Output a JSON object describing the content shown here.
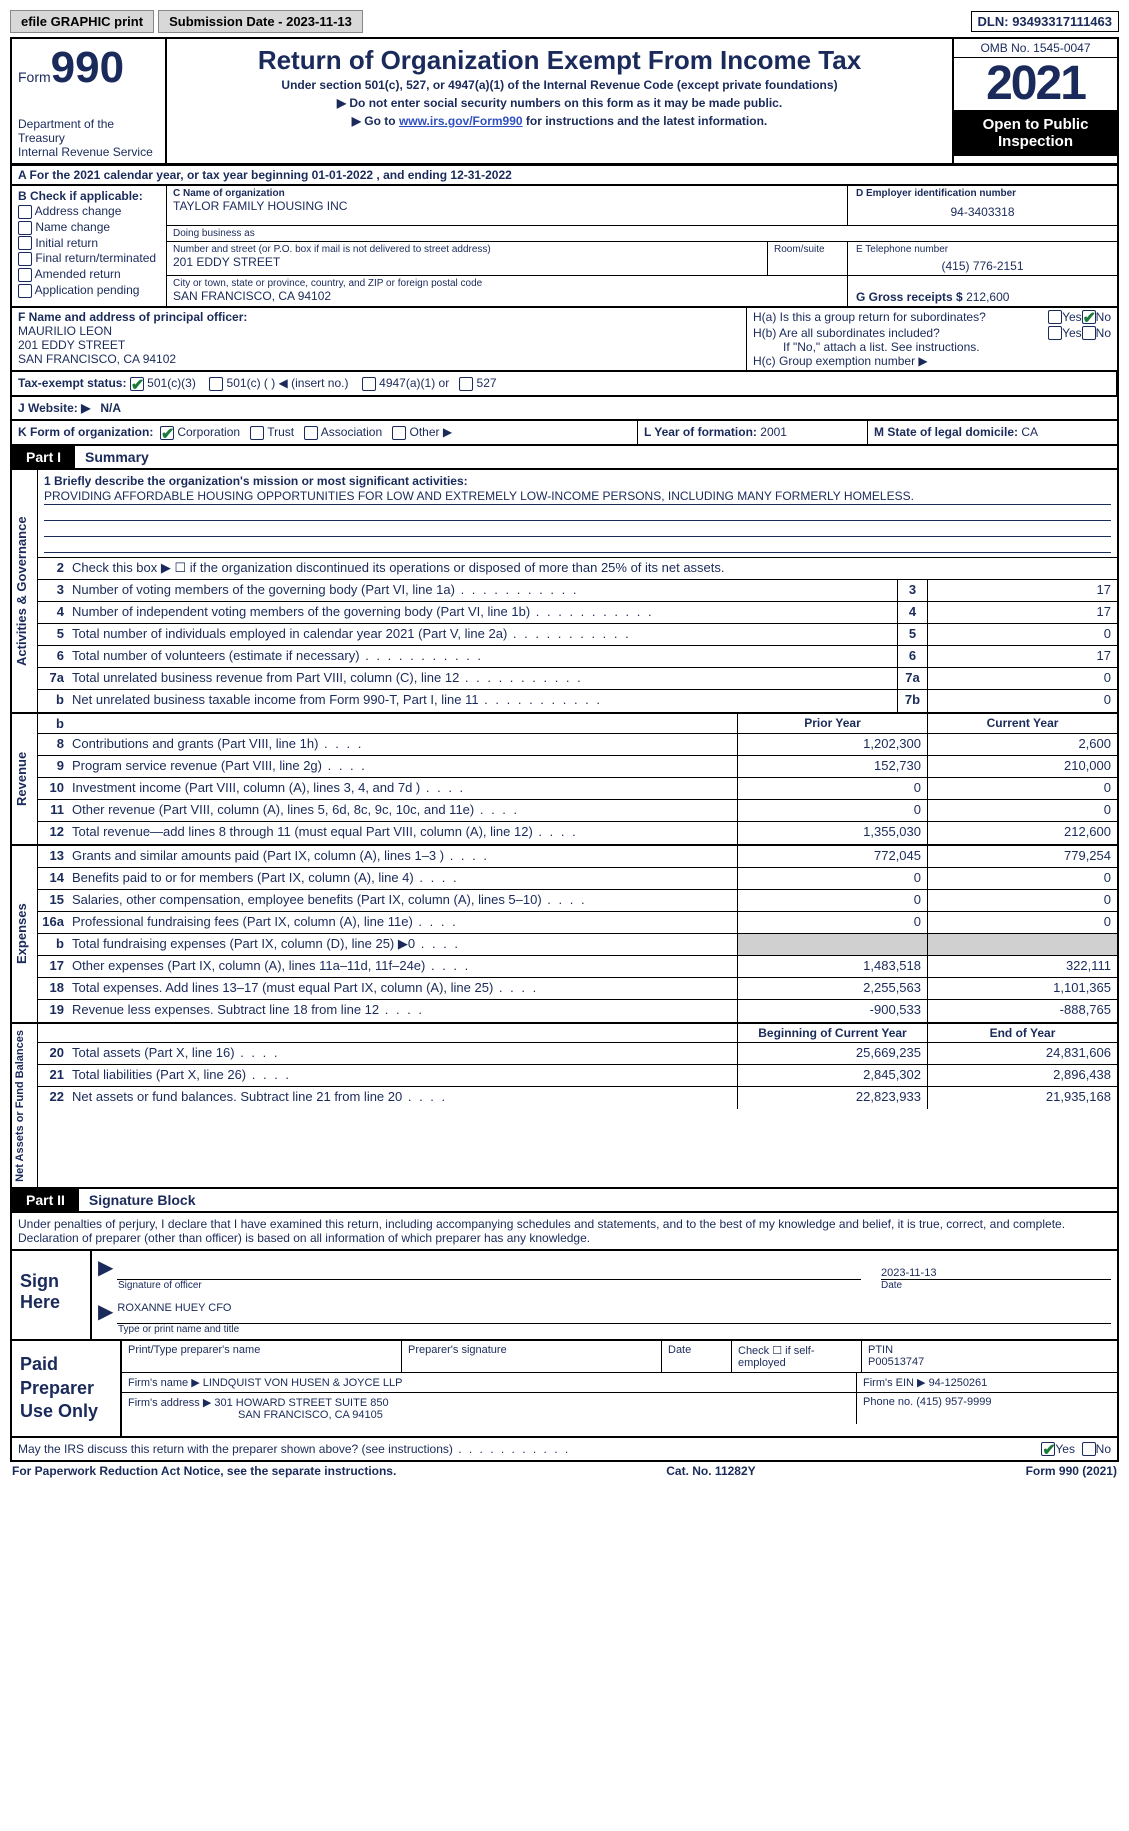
{
  "top": {
    "efile": "efile GRAPHIC print",
    "submission": "Submission Date - 2023-11-13",
    "dln": "DLN: 93493317111463"
  },
  "header": {
    "form_label": "Form",
    "form_number": "990",
    "dept": "Department of the Treasury",
    "irs": "Internal Revenue Service",
    "title": "Return of Organization Exempt From Income Tax",
    "subtitle": "Under section 501(c), 527, or 4947(a)(1) of the Internal Revenue Code (except private foundations)",
    "note1": "▶ Do not enter social security numbers on this form as it may be made public.",
    "note2_pre": "▶ Go to ",
    "note2_link": "www.irs.gov/Form990",
    "note2_post": " for instructions and the latest information.",
    "omb": "OMB No. 1545-0047",
    "year": "2021",
    "open": "Open to Public Inspection"
  },
  "row_a": {
    "text_pre": "A For the 2021 calendar year, or tax year beginning ",
    "begin": "01-01-2022",
    "mid": "   , and ending ",
    "end": "12-31-2022"
  },
  "col_b": {
    "head": "B Check if applicable:",
    "items": [
      "Address change",
      "Name change",
      "Initial return",
      "Final return/terminated",
      "Amended return",
      "Application pending"
    ]
  },
  "col_c": {
    "name_lbl": "C Name of organization",
    "name": "TAYLOR FAMILY HOUSING INC",
    "dba_lbl": "Doing business as",
    "dba": "",
    "street_lbl": "Number and street (or P.O. box if mail is not delivered to street address)",
    "street": "201 EDDY STREET",
    "room_lbl": "Room/suite",
    "city_lbl": "City or town, state or province, country, and ZIP or foreign postal code",
    "city": "SAN FRANCISCO, CA  94102"
  },
  "col_d": {
    "ein_lbl": "D Employer identification number",
    "ein": "94-3403318",
    "phone_lbl": "E Telephone number",
    "phone": "(415) 776-2151",
    "gross_lbl": "G Gross receipts $",
    "gross": "212,600"
  },
  "f": {
    "lbl": "F Name and address of principal officer:",
    "name": "MAURILIO LEON",
    "addr1": "201 EDDY STREET",
    "addr2": "SAN FRANCISCO, CA  94102"
  },
  "h": {
    "a_lbl": "H(a)  Is this a group return for subordinates?",
    "b_lbl": "H(b)  Are all subordinates included?",
    "b_note": "If \"No,\" attach a list. See instructions.",
    "c_lbl": "H(c)  Group exemption number ▶"
  },
  "i": {
    "lbl": "Tax-exempt status:",
    "opts": [
      "501(c)(3)",
      "501(c) (  ) ◀ (insert no.)",
      "4947(a)(1) or",
      "527"
    ]
  },
  "j": {
    "lbl": "J   Website: ▶",
    "val": "N/A"
  },
  "k": {
    "lbl": "K Form of organization:",
    "opts": [
      "Corporation",
      "Trust",
      "Association",
      "Other ▶"
    ]
  },
  "l": {
    "lbl": "L Year of formation:",
    "val": "2001"
  },
  "m": {
    "lbl": "M State of legal domicile:",
    "val": "CA"
  },
  "part1": {
    "tag": "Part I",
    "title": "Summary"
  },
  "mission": {
    "intro": "1   Briefly describe the organization's mission or most significant activities:",
    "text": "PROVIDING AFFORDABLE HOUSING OPPORTUNITIES FOR LOW AND EXTREMELY LOW-INCOME PERSONS, INCLUDING MANY FORMERLY HOMELESS."
  },
  "line2": "Check this box ▶ ☐  if the organization discontinued its operations or disposed of more than 25% of its net assets.",
  "sections": {
    "activities": {
      "label": "Activities & Governance",
      "rows": [
        {
          "num": "3",
          "text": "Number of voting members of the governing body (Part VI, line 1a)",
          "box": "3",
          "val": "17"
        },
        {
          "num": "4",
          "text": "Number of independent voting members of the governing body (Part VI, line 1b)",
          "box": "4",
          "val": "17"
        },
        {
          "num": "5",
          "text": "Total number of individuals employed in calendar year 2021 (Part V, line 2a)",
          "box": "5",
          "val": "0"
        },
        {
          "num": "6",
          "text": "Total number of volunteers (estimate if necessary)",
          "box": "6",
          "val": "17"
        },
        {
          "num": "7a",
          "text": "Total unrelated business revenue from Part VIII, column (C), line 12",
          "box": "7a",
          "val": "0"
        },
        {
          "num": "b",
          "text": "Net unrelated business taxable income from Form 990-T, Part I, line 11",
          "box": "7b",
          "val": "0"
        }
      ]
    },
    "revenue": {
      "label": "Revenue",
      "col_headers": {
        "prior": "Prior Year",
        "current": "Current Year"
      },
      "rows": [
        {
          "num": "8",
          "text": "Contributions and grants (Part VIII, line 1h)",
          "prior": "1,202,300",
          "current": "2,600"
        },
        {
          "num": "9",
          "text": "Program service revenue (Part VIII, line 2g)",
          "prior": "152,730",
          "current": "210,000"
        },
        {
          "num": "10",
          "text": "Investment income (Part VIII, column (A), lines 3, 4, and 7d )",
          "prior": "0",
          "current": "0"
        },
        {
          "num": "11",
          "text": "Other revenue (Part VIII, column (A), lines 5, 6d, 8c, 9c, 10c, and 11e)",
          "prior": "0",
          "current": "0"
        },
        {
          "num": "12",
          "text": "Total revenue—add lines 8 through 11 (must equal Part VIII, column (A), line 12)",
          "prior": "1,355,030",
          "current": "212,600"
        }
      ]
    },
    "expenses": {
      "label": "Expenses",
      "rows": [
        {
          "num": "13",
          "text": "Grants and similar amounts paid (Part IX, column (A), lines 1–3 )",
          "prior": "772,045",
          "current": "779,254"
        },
        {
          "num": "14",
          "text": "Benefits paid to or for members (Part IX, column (A), line 4)",
          "prior": "0",
          "current": "0"
        },
        {
          "num": "15",
          "text": "Salaries, other compensation, employee benefits (Part IX, column (A), lines 5–10)",
          "prior": "0",
          "current": "0"
        },
        {
          "num": "16a",
          "text": "Professional fundraising fees (Part IX, column (A), line 11e)",
          "prior": "0",
          "current": "0"
        },
        {
          "num": "b",
          "text": "Total fundraising expenses (Part IX, column (D), line 25) ▶0",
          "prior": "shaded",
          "current": "shaded"
        },
        {
          "num": "17",
          "text": "Other expenses (Part IX, column (A), lines 11a–11d, 11f–24e)",
          "prior": "1,483,518",
          "current": "322,111"
        },
        {
          "num": "18",
          "text": "Total expenses. Add lines 13–17 (must equal Part IX, column (A), line 25)",
          "prior": "2,255,563",
          "current": "1,101,365"
        },
        {
          "num": "19",
          "text": "Revenue less expenses. Subtract line 18 from line 12",
          "prior": "-900,533",
          "current": "-888,765"
        }
      ]
    },
    "netassets": {
      "label": "Net Assets or Fund Balances",
      "col_headers": {
        "prior": "Beginning of Current Year",
        "current": "End of Year"
      },
      "rows": [
        {
          "num": "20",
          "text": "Total assets (Part X, line 16)",
          "prior": "25,669,235",
          "current": "24,831,606"
        },
        {
          "num": "21",
          "text": "Total liabilities (Part X, line 26)",
          "prior": "2,845,302",
          "current": "2,896,438"
        },
        {
          "num": "22",
          "text": "Net assets or fund balances. Subtract line 21 from line 20",
          "prior": "22,823,933",
          "current": "21,935,168"
        }
      ]
    }
  },
  "part2": {
    "tag": "Part II",
    "title": "Signature Block"
  },
  "sig_intro": "Under penalties of perjury, I declare that I have examined this return, including accompanying schedules and statements, and to the best of my knowledge and belief, it is true, correct, and complete. Declaration of preparer (other than officer) is based on all information of which preparer has any knowledge.",
  "sign": {
    "label": "Sign Here",
    "sig_lbl": "Signature of officer",
    "date": "2023-11-13",
    "date_lbl": "Date",
    "name": "ROXANNE HUEY CFO",
    "name_lbl": "Type or print name and title"
  },
  "paid": {
    "label": "Paid Preparer Use Only",
    "r1": {
      "c1": "Print/Type preparer's name",
      "c2": "Preparer's signature",
      "c3": "Date",
      "c4_lbl": "Check ☐ if self-employed",
      "c5_lbl": "PTIN",
      "c5": "P00513747"
    },
    "r2": {
      "lbl": "Firm's name      ▶",
      "val": "LINDQUIST VON HUSEN & JOYCE LLP",
      "ein_lbl": "Firm's EIN ▶",
      "ein": "94-1250261"
    },
    "r3": {
      "lbl": "Firm's address ▶",
      "val1": "301 HOWARD STREET SUITE 850",
      "val2": "SAN FRANCISCO, CA  94105",
      "phone_lbl": "Phone no.",
      "phone": "(415) 957-9999"
    }
  },
  "discuss": "May the IRS discuss this return with the preparer shown above? (see instructions)",
  "footer": {
    "left": "For Paperwork Reduction Act Notice, see the separate instructions.",
    "mid": "Cat. No. 11282Y",
    "right": "Form 990 (2021)"
  },
  "colors": {
    "text": "#1a2a5a",
    "check_green": "#1a7a3a",
    "bg": "#ffffff",
    "shaded": "#d0d0d0",
    "black": "#000000"
  }
}
